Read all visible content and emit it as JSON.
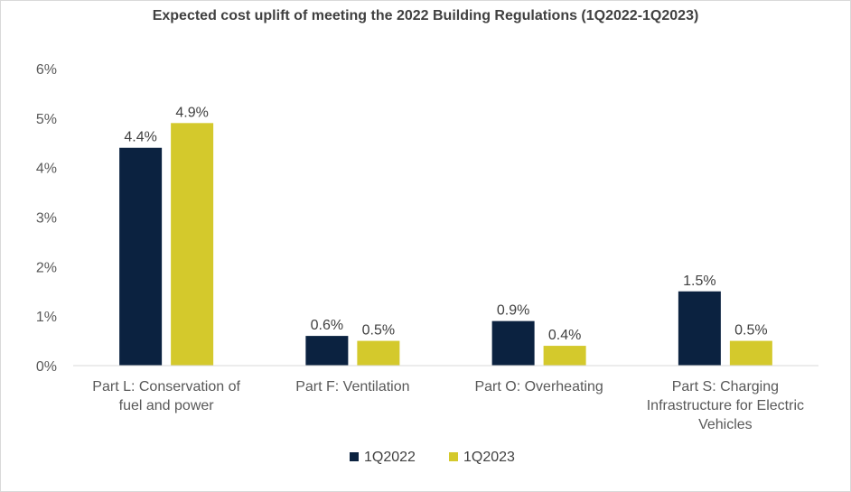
{
  "chart_data": {
    "type": "bar",
    "title": "Expected cost uplift of meeting the 2022 Building Regulations (1Q2022-1Q2023)",
    "xlabel": "",
    "ylabel": "",
    "ylim": [
      0,
      6
    ],
    "yticks": [
      "0%",
      "1%",
      "2%",
      "3%",
      "4%",
      "5%",
      "6%"
    ],
    "grid": false,
    "legend": "bottom",
    "categories": [
      [
        "Part L: Conservation of",
        "fuel and power"
      ],
      [
        "Part F: Ventilation"
      ],
      [
        "Part O: Overheating"
      ],
      [
        "Part S: Charging",
        "Infrastructure for Electric",
        "Vehicles"
      ]
    ],
    "series": [
      {
        "name": "1Q2022",
        "color": "#0b2240",
        "values": [
          4.4,
          0.6,
          0.9,
          1.5
        ],
        "labels": [
          "4.4%",
          "0.6%",
          "0.9%",
          "1.5%"
        ]
      },
      {
        "name": "1Q2023",
        "color": "#d4c92c",
        "values": [
          4.9,
          0.5,
          0.4,
          0.5
        ],
        "labels": [
          "4.9%",
          "0.5%",
          "0.4%",
          "0.5%"
        ]
      }
    ]
  }
}
